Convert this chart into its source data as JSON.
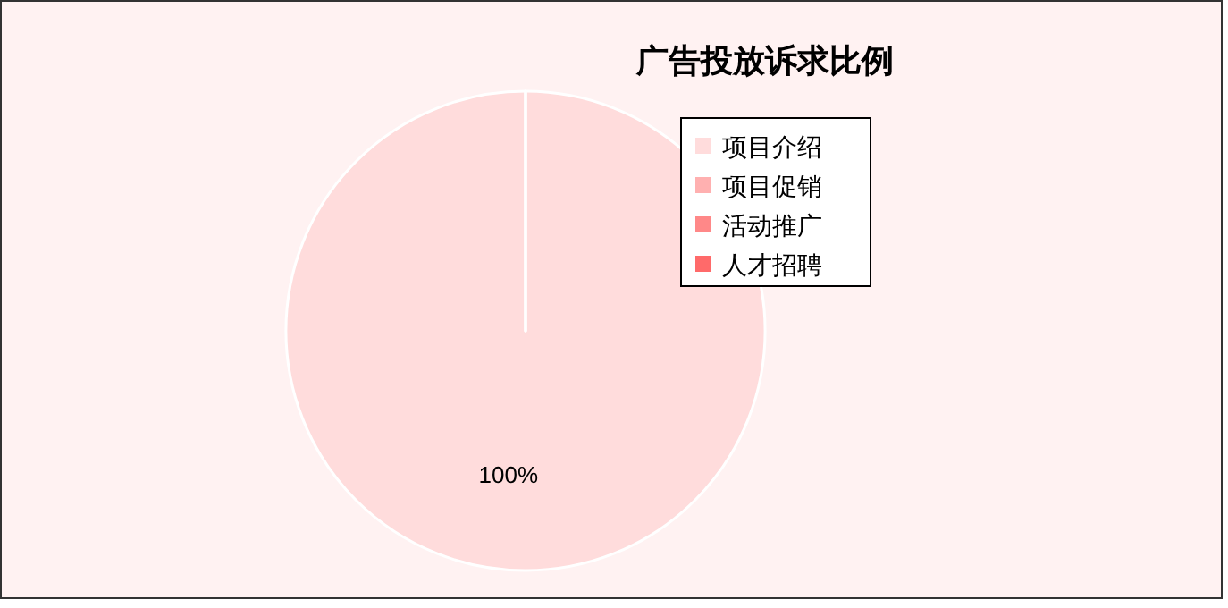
{
  "chart_data": {
    "type": "pie",
    "title": "广告投放诉求比例",
    "categories": [
      "项目介绍",
      "项目促销",
      "活动推广",
      "人才招聘"
    ],
    "values": [
      100,
      0,
      0,
      0
    ],
    "colors": [
      "#ffdcdc",
      "#ffb0b0",
      "#ff8888",
      "#ff6a6a"
    ],
    "value_labels": [
      "100%",
      null,
      null,
      null
    ],
    "legend": "top right"
  }
}
